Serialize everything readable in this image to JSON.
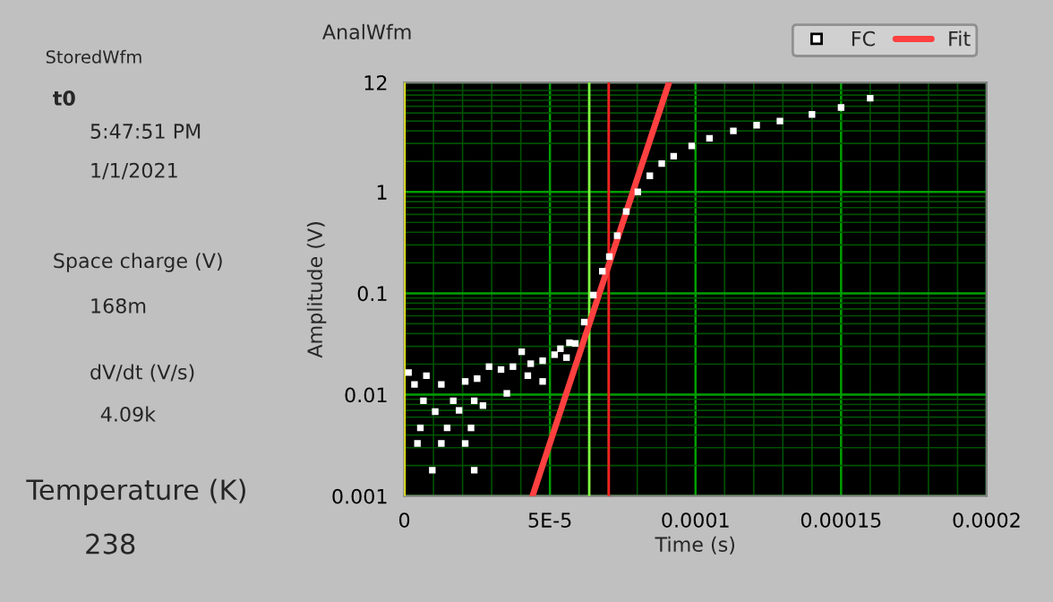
{
  "chart_data": {
    "type": "scatter",
    "title": "AnalWfm",
    "xlabel": "Time (s)",
    "ylabel": "Amplitude (V)",
    "annotations": [
      "StoredWfm",
      "t0",
      "5:47:51 PM",
      "1/1/2021",
      "Space charge (V)",
      "168m",
      "dV/dt (V/s)",
      "4.09k",
      "Temperature (K)",
      "238"
    ],
    "series": [
      {
        "name": "FC",
        "color": "#ffffff",
        "marker": "square",
        "x": [
          1.43e-06,
          7.57e-06,
          3.48e-06,
          1.27e-05,
          2.09e-05,
          2.5e-05,
          2.91e-05,
          3.32e-05,
          3.73e-05,
          4.03e-05,
          4.34e-05,
          4.75e-05,
          5.16e-05,
          5.36e-05,
          5.57e-05,
          5.67e-05,
          6.55e-06,
          1.68e-05,
          2.4e-05,
          1.06e-05,
          1.88e-05,
          2.7e-05,
          3.52e-05,
          5.5e-06,
          1.47e-05,
          2.29e-05,
          4.5e-06,
          1.27e-05,
          2.09e-05,
          9.6e-06,
          2.4e-05,
          4.75e-05,
          4.24e-05,
          5.87e-05,
          6.18e-05,
          6.49e-05,
          6.8e-05,
          7.04e-05,
          7.31e-05,
          7.62e-05,
          8.02e-05,
          8.43e-05,
          8.84e-05,
          9.25e-05,
          9.87e-05,
          0.0001048,
          0.000113,
          0.000121,
          0.000129,
          0.00014,
          0.00015,
          0.00016
        ],
        "values": [
          0.0165,
          0.0154,
          0.0126,
          0.0126,
          0.0135,
          0.0144,
          0.0189,
          0.0177,
          0.0189,
          0.0265,
          0.0202,
          0.0216,
          0.0248,
          0.0284,
          0.0232,
          0.0325,
          0.0087,
          0.0087,
          0.0087,
          0.0068,
          0.007,
          0.0078,
          0.0103,
          0.0047,
          0.0047,
          0.0047,
          0.0033,
          0.0033,
          0.0033,
          0.0018,
          0.0018,
          0.0135,
          0.0154,
          0.032,
          0.052,
          0.096,
          0.165,
          0.23,
          0.37,
          0.64,
          1.0,
          1.44,
          1.9,
          2.25,
          2.84,
          3.38,
          4.0,
          4.55,
          5.0,
          5.8,
          6.8,
          8.4
        ]
      },
      {
        "name": "Fit",
        "type": "line",
        "color": "#ff4040",
        "x": [
          4.4e-05,
          9.09e-05
        ],
        "values": [
          0.001,
          12
        ]
      }
    ],
    "log": "y",
    "xlim": [
      0,
      0.0002
    ],
    "xticks": [
      0,
      {
        "value": 1e-05,
        "label": null
      },
      {
        "value": 2e-05,
        "label": null
      },
      {
        "value": 3e-05,
        "label": null
      },
      {
        "value": 4e-05,
        "label": null
      },
      {
        "value": 5e-05,
        "label": "5E-5"
      },
      {
        "value": 6e-05,
        "label": null
      },
      {
        "value": 7e-05,
        "label": null
      },
      {
        "value": 8e-05,
        "label": null
      },
      {
        "value": 9e-05,
        "label": null
      },
      0.0001,
      {
        "value": 0.00011,
        "label": null
      },
      {
        "value": 0.00012,
        "label": null
      },
      {
        "value": 0.00013,
        "label": null
      },
      {
        "value": 0.00014,
        "label": null
      },
      0.00015,
      {
        "value": 0.00016,
        "label": null
      },
      {
        "value": 0.00017,
        "label": null
      },
      {
        "value": 0.00018,
        "label": null
      },
      {
        "value": 0.00019,
        "label": null
      },
      0.0002
    ],
    "ylim": [
      0.001,
      12
    ],
    "yticks": [
      0.001,
      {
        "value": 0.002,
        "label": null
      },
      {
        "value": 0.003,
        "label": null
      },
      {
        "value": 0.004,
        "label": null
      },
      {
        "value": 0.005,
        "label": null
      },
      {
        "value": 0.006,
        "label": null
      },
      {
        "value": 0.007,
        "label": null
      },
      {
        "value": 0.008,
        "label": null
      },
      {
        "value": 0.009,
        "label": null
      },
      0.01,
      {
        "value": 0.02,
        "label": null
      },
      {
        "value": 0.03,
        "label": null
      },
      {
        "value": 0.04,
        "label": null
      },
      {
        "value": 0.05,
        "label": null
      },
      {
        "value": 0.06,
        "label": null
      },
      {
        "value": 0.07,
        "label": null
      },
      {
        "value": 0.08,
        "label": null
      },
      {
        "value": 0.09,
        "label": null
      },
      0.1,
      {
        "value": 0.2,
        "label": null
      },
      {
        "value": 0.3,
        "label": null
      },
      {
        "value": 0.4,
        "label": null
      },
      {
        "value": 0.5,
        "label": null
      },
      {
        "value": 0.6,
        "label": null
      },
      {
        "value": 0.7,
        "label": null
      },
      {
        "value": 0.8,
        "label": null
      },
      {
        "value": 0.9,
        "label": null
      },
      1,
      {
        "value": 2,
        "label": null
      },
      {
        "value": 3,
        "label": null
      },
      {
        "value": 4,
        "label": null
      },
      {
        "value": 5,
        "label": null
      },
      {
        "value": 6,
        "label": null
      },
      {
        "value": 7,
        "label": null
      },
      {
        "value": 8,
        "label": null
      },
      {
        "value": 9,
        "label": null
      },
      {
        "value": 10,
        "label": null
      },
      12
    ],
    "ref_lines": [
      {
        "axis": "x",
        "value": 0,
        "color": "#ffff00"
      },
      {
        "axis": "x",
        "value": 6.35e-05,
        "color": "#80ff40"
      },
      {
        "axis": "x",
        "value": 7.02e-05,
        "color": "#ff2020"
      }
    ],
    "grid": true,
    "legend": "top right"
  }
}
